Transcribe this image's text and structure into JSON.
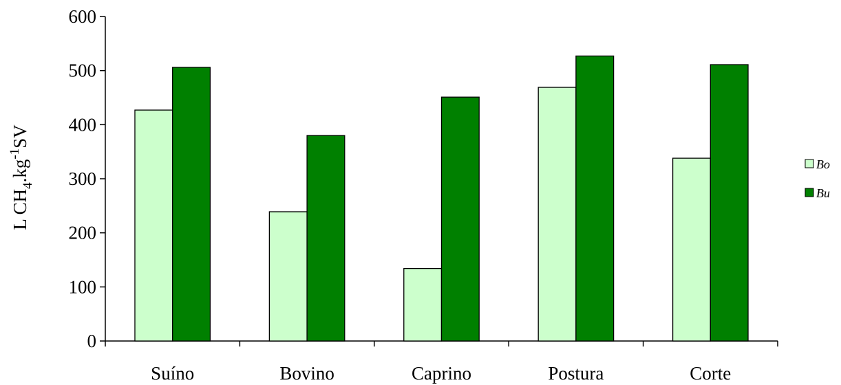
{
  "chart_data": {
    "type": "bar",
    "categories": [
      "Suíno",
      "Bovino",
      "Caprino",
      "Postura",
      "Corte"
    ],
    "series": [
      {
        "name": "Bo",
        "values": [
          427,
          239,
          134,
          469,
          338
        ],
        "color": "#ccffcc"
      },
      {
        "name": "Bu",
        "values": [
          506,
          380,
          451,
          527,
          511
        ],
        "color": "#008000"
      }
    ],
    "ylabel": {
      "prefix": "L CH",
      "sub": "4",
      "mid": ".kg",
      "sup": "-1",
      "suffix": "SV"
    },
    "ylim": [
      0,
      600
    ],
    "yticks": [
      "0",
      "100",
      "200",
      "300",
      "400",
      "500",
      "600"
    ],
    "grid": false,
    "legend_position": "right"
  }
}
